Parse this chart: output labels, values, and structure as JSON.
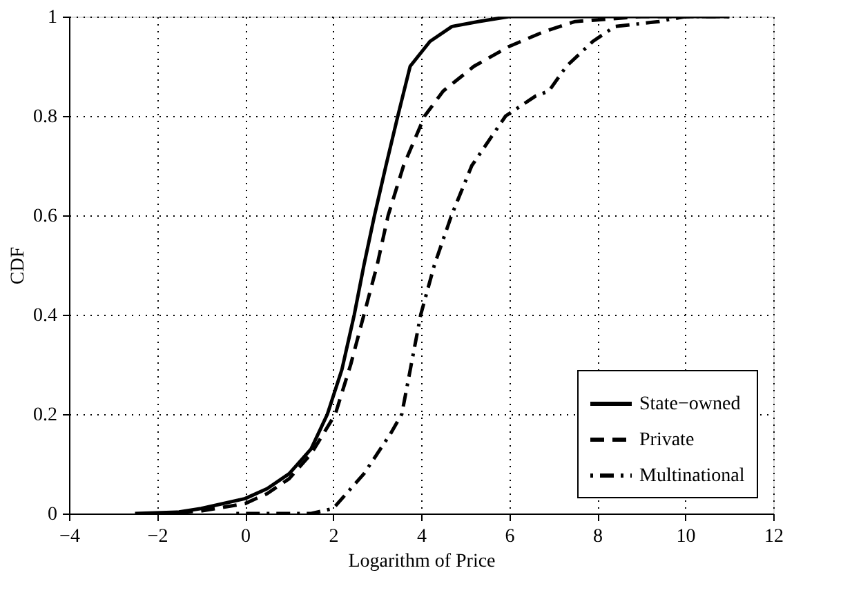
{
  "chart_data": {
    "type": "line",
    "xlabel": "Logarithm of Price",
    "ylabel": "CDF",
    "xlim": [
      -4,
      12
    ],
    "xticks": [
      -4,
      -2,
      0,
      2,
      4,
      6,
      8,
      10,
      12
    ],
    "ylim": [
      0,
      1
    ],
    "yticks": [
      0,
      0.2,
      0.4,
      0.6,
      0.8,
      1
    ],
    "grid": true,
    "legend": "bottom right",
    "marker": "none",
    "series": [
      {
        "name": "State−owned",
        "color": "#000000",
        "line_style": "solid",
        "x": [
          -2.5,
          -1.5,
          -1,
          0,
          0.5,
          1,
          1.5,
          1.87,
          2.2,
          2.48,
          2.7,
          2.94,
          3.2,
          3.47,
          3.75,
          4.2,
          4.7,
          5.3,
          6,
          8,
          11
        ],
        "values": [
          0,
          0.003,
          0.01,
          0.03,
          0.05,
          0.08,
          0.13,
          0.2,
          0.29,
          0.4,
          0.5,
          0.6,
          0.7,
          0.8,
          0.9,
          0.95,
          0.98,
          0.99,
          1,
          1,
          1
        ]
      },
      {
        "name": "Private",
        "color": "#000000",
        "line_style": "dashed",
        "x": [
          -2,
          -1,
          0,
          0.5,
          1,
          1.5,
          2.05,
          2.4,
          2.7,
          3.0,
          3.25,
          3.6,
          4.08,
          4.5,
          5.2,
          6,
          6.8,
          7.5,
          9,
          11
        ],
        "values": [
          0,
          0.005,
          0.02,
          0.04,
          0.07,
          0.12,
          0.2,
          0.3,
          0.4,
          0.5,
          0.6,
          0.7,
          0.8,
          0.85,
          0.9,
          0.94,
          0.97,
          0.99,
          1,
          1
        ]
      },
      {
        "name": "Multinational",
        "color": "#000000",
        "line_style": "dashdot",
        "x": [
          -0.2,
          1.5,
          2,
          2.3,
          2.7,
          3.0,
          3.3,
          3.56,
          3.99,
          4.3,
          4.69,
          5.15,
          5.92,
          6.6,
          6.9,
          7.3,
          7.9,
          8.4,
          9.4,
          10,
          11
        ],
        "values": [
          0,
          0,
          0.01,
          0.04,
          0.08,
          0.12,
          0.16,
          0.2,
          0.4,
          0.5,
          0.6,
          0.7,
          0.8,
          0.84,
          0.85,
          0.9,
          0.95,
          0.98,
          0.99,
          1,
          1
        ]
      }
    ]
  }
}
